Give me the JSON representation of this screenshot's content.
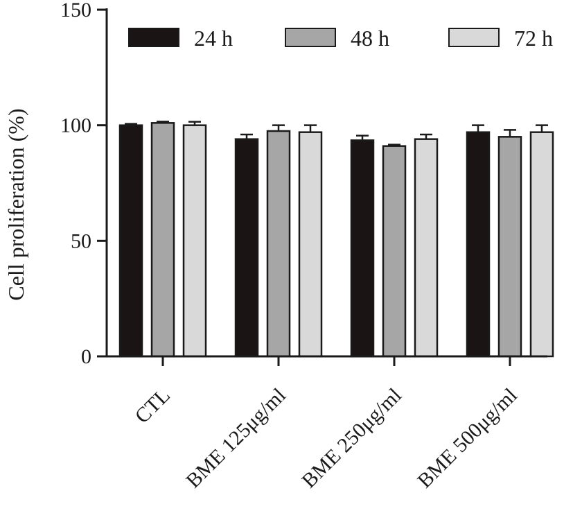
{
  "chart_data": {
    "type": "bar",
    "ylabel": "Cell proliferation (%)",
    "ylim": [
      0,
      150
    ],
    "yticks": [
      0,
      50,
      100,
      150
    ],
    "categories": [
      "CTL",
      "BME 125μg/ml",
      "BME 250μg/ml",
      "BME 500μg/ml"
    ],
    "series": [
      {
        "name": "24 h",
        "color": "#1a1414",
        "values": [
          100,
          94,
          93.5,
          97
        ],
        "errors": [
          0.6,
          2,
          2,
          3
        ]
      },
      {
        "name": "48 h",
        "color": "#a6a6a6",
        "values": [
          101,
          97.5,
          91,
          95
        ],
        "errors": [
          0.6,
          2.5,
          0.6,
          3
        ]
      },
      {
        "name": "72 h",
        "color": "#d9d9d9",
        "values": [
          100,
          97,
          94,
          97
        ],
        "errors": [
          1.5,
          3,
          2,
          3
        ]
      }
    ],
    "legend_position": "top",
    "grid": false
  }
}
